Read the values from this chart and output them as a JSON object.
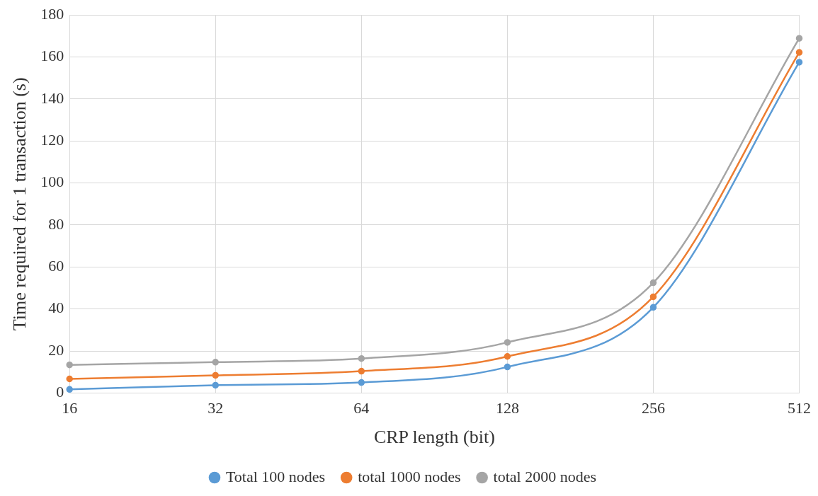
{
  "chart_data": {
    "type": "line",
    "xlabel": "CRP length (bit)",
    "ylabel": "Time required for 1 transaction (s)",
    "categories": [
      "16",
      "32",
      "64",
      "128",
      "256",
      "512"
    ],
    "series": [
      {
        "name": "Total 100 nodes",
        "color": "#5b9bd5",
        "values": [
          1.7,
          3.7,
          5.0,
          12.4,
          40.8,
          157.5
        ]
      },
      {
        "name": "total 1000 nodes",
        "color": "#ed7d31",
        "values": [
          6.7,
          8.4,
          10.4,
          17.4,
          45.8,
          162.2
        ]
      },
      {
        "name": "total 2000 nodes",
        "color": "#a5a5a5",
        "values": [
          13.4,
          14.7,
          16.4,
          24.1,
          52.5,
          168.9
        ]
      }
    ],
    "ylim": [
      0,
      180
    ],
    "yticks": [
      0,
      20,
      40,
      60,
      80,
      100,
      120,
      140,
      160,
      180
    ],
    "grid": true,
    "legend": "bottom",
    "marker": "circle",
    "line_style": "solid"
  }
}
